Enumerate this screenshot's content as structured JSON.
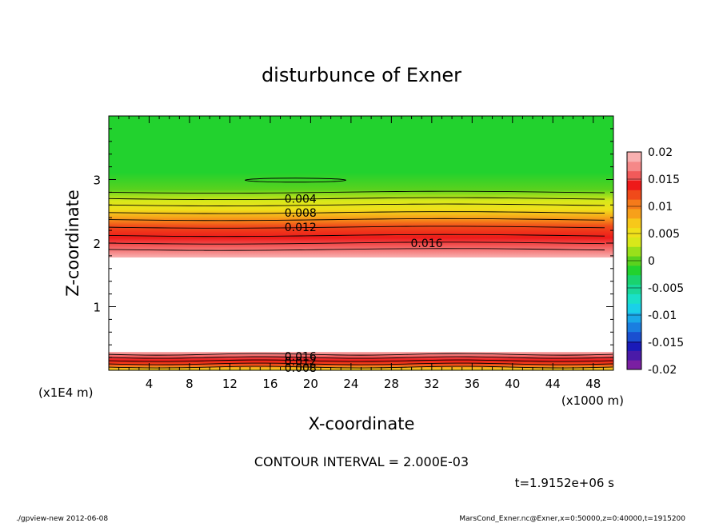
{
  "chart_data": {
    "type": "heatmap",
    "title": "disturbunce of Exner",
    "xlabel": "X-coordinate",
    "ylabel": "Z-coordinate",
    "x_unit": "(x1000 m)",
    "y_unit": "(x1E4 m)",
    "xlim": [
      0,
      50
    ],
    "ylim": [
      0,
      4
    ],
    "x_ticks": [
      4,
      8,
      12,
      16,
      20,
      24,
      28,
      32,
      36,
      40,
      44,
      48
    ],
    "y_ticks": [
      1,
      2,
      3
    ],
    "x_tick_labels": [
      "4",
      "8",
      "12",
      "16",
      "20",
      "24",
      "28",
      "32",
      "36",
      "40",
      "44",
      "48"
    ],
    "y_tick_labels": [
      "1",
      "2",
      "3"
    ],
    "colorbar": {
      "range": [
        -0.02,
        0.02
      ],
      "tick_labels": [
        "0.02",
        "0.015",
        "0.01",
        "0.005",
        "0",
        "-0.005",
        "-0.01",
        "-0.015",
        "-0.02"
      ],
      "colors": [
        "#7a1fa2",
        "#4a1aa8",
        "#1a1ab8",
        "#1a4fd0",
        "#1a7ee0",
        "#1aa8e8",
        "#1ad0e8",
        "#1ae0c8",
        "#1ad89a",
        "#1ad26e",
        "#22d22e",
        "#5ad21e",
        "#9ae01a",
        "#d8e81a",
        "#f0e01a",
        "#f7c81a",
        "#f7a01a",
        "#f57a1a",
        "#f04a1a",
        "#ee1a1a",
        "#f25a5a",
        "#f58888",
        "#f8b0b0"
      ]
    },
    "contour_interval_text": "CONTOUR INTERVAL = 2.000E-03",
    "contour_labels": [
      {
        "text": "0.004",
        "x": 19,
        "z": 2.7
      },
      {
        "text": "0.008",
        "x": 19,
        "z": 2.48
      },
      {
        "text": "0.012",
        "x": 19,
        "z": 2.25
      },
      {
        "text": "0.016",
        "x": 31.5,
        "z": 2.0
      },
      {
        "text": "0.016",
        "x": 19,
        "z": 0.22
      },
      {
        "text": "0.012",
        "x": 19,
        "z": 0.14
      },
      {
        "text": "0.008",
        "x": 19,
        "z": 0.04
      }
    ],
    "time_text": "t=1.9152e+06 s"
  },
  "footer": {
    "left": "./gpview-new  2012-06-08",
    "right": "MarsCond_Exner.nc@Exner,x=0:50000,z=0:40000,t=1915200"
  }
}
